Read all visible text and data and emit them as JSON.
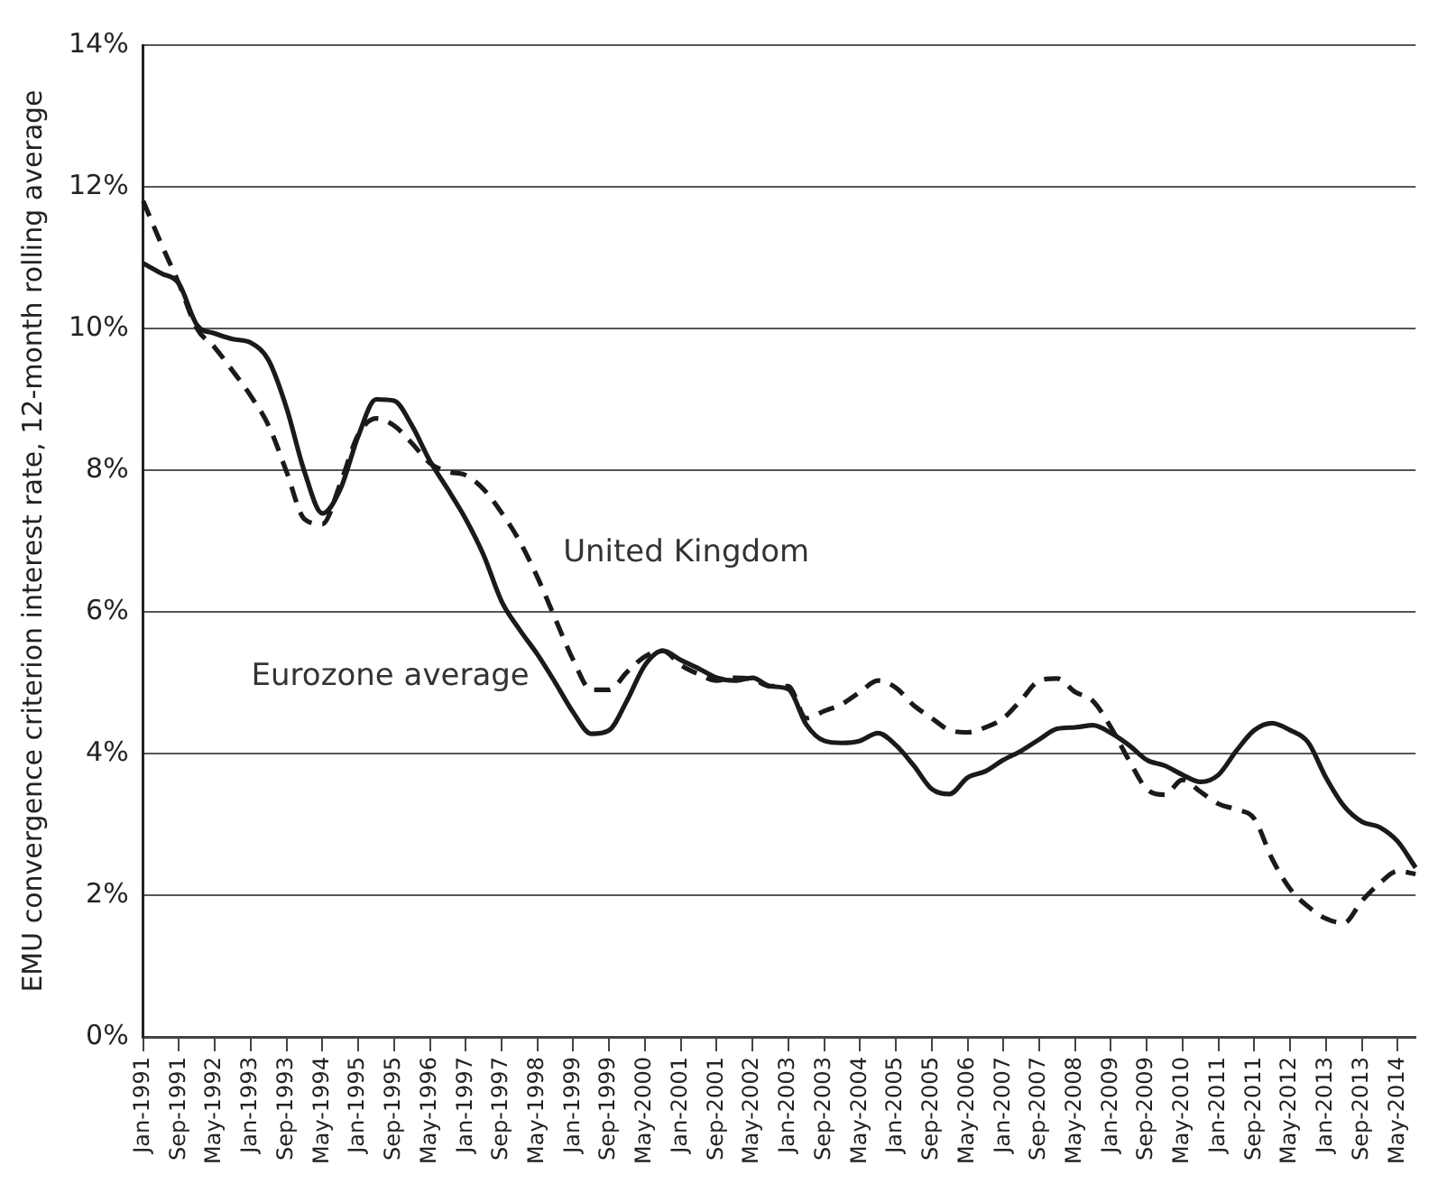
{
  "chart_data": {
    "type": "line",
    "ylabel": "EMU convergence criterion interest rate, 12-month rolling average",
    "categories": [
      "Jan-1991",
      null,
      "Sep-1991",
      null,
      "May-1992",
      null,
      "Jan-1993",
      null,
      "Sep-1993",
      null,
      "May-1994",
      null,
      "Jan-1995",
      null,
      "Sep-1995",
      null,
      "May-1996",
      null,
      "Jan-1997",
      null,
      "Sep-1997",
      null,
      "May-1998",
      null,
      "Jan-1999",
      null,
      "Sep-1999",
      null,
      "May-2000",
      null,
      "Jan-2001",
      null,
      "Sep-2001",
      null,
      "May-2002",
      null,
      "Jan-2003",
      null,
      "Sep-2003",
      null,
      "May-2004",
      null,
      "Jan-2005",
      null,
      "Sep-2005",
      null,
      "May-2006",
      null,
      "Jan-2007",
      null,
      "Sep-2007",
      null,
      "May-2008",
      null,
      "Jan-2009",
      null,
      "Sep-2009",
      null,
      "May-2010",
      null,
      "Jan-2011",
      null,
      "Sep-2011",
      null,
      "May-2012",
      null,
      "Jan-2013",
      null,
      "Sep-2013",
      null,
      "May-2014",
      null
    ],
    "series": [
      {
        "name": "Eurozone average",
        "color": "#1a1a1a",
        "line_style": "solid",
        "values": [
          10.92,
          10.78,
          10.63,
          10.05,
          9.93,
          9.85,
          9.8,
          9.55,
          8.88,
          7.98,
          7.39,
          7.73,
          8.48,
          9.0,
          8.98,
          8.63,
          8.13,
          7.73,
          7.31,
          6.8,
          6.15,
          5.75,
          5.4,
          5.0,
          4.58,
          4.28,
          4.33,
          4.75,
          5.25,
          5.45,
          5.32,
          5.2,
          5.07,
          5.03,
          5.07,
          4.95,
          4.91,
          4.41,
          4.18,
          4.15,
          4.18,
          4.29,
          4.12,
          3.83,
          3.5,
          3.43,
          3.66,
          3.75,
          3.91,
          4.04,
          4.2,
          4.35,
          4.37,
          4.4,
          4.29,
          4.12,
          3.91,
          3.83,
          3.7,
          3.6,
          3.7,
          4.04,
          4.33,
          4.43,
          4.33,
          4.16,
          3.66,
          3.26,
          3.04,
          2.96,
          2.76,
          2.39
        ]
      },
      {
        "name": "United Kingdom",
        "color": "#1a1a1a",
        "line_style": "dashed",
        "values": [
          11.8,
          11.2,
          10.63,
          10.0,
          9.73,
          9.4,
          9.05,
          8.63,
          7.98,
          7.31,
          7.24,
          7.81,
          8.5,
          8.73,
          8.63,
          8.38,
          8.1,
          7.98,
          7.93,
          7.73,
          7.4,
          7.0,
          6.49,
          5.9,
          5.32,
          4.9,
          4.9,
          5.15,
          5.37,
          5.45,
          5.25,
          5.12,
          5.03,
          5.07,
          5.05,
          4.95,
          4.95,
          4.5,
          4.6,
          4.7,
          4.87,
          5.03,
          4.93,
          4.68,
          4.5,
          4.33,
          4.3,
          4.37,
          4.5,
          4.76,
          5.03,
          5.06,
          4.87,
          4.74,
          4.37,
          3.91,
          3.5,
          3.42,
          3.63,
          3.46,
          3.29,
          3.21,
          3.08,
          2.51,
          2.09,
          1.84,
          1.67,
          1.61,
          1.92,
          2.17,
          2.34,
          2.3
        ]
      }
    ],
    "ylim": [
      0,
      14
    ],
    "yticks": [
      {
        "value": 0,
        "label": "0%"
      },
      {
        "value": 2,
        "label": "2%"
      },
      {
        "value": 4,
        "label": "4%"
      },
      {
        "value": 6,
        "label": "6%"
      },
      {
        "value": 8,
        "label": "8%"
      },
      {
        "value": 10,
        "label": "10%"
      },
      {
        "value": 12,
        "label": "12%"
      },
      {
        "value": 14,
        "label": "14%"
      }
    ],
    "grid": "y",
    "legend": false,
    "marker": "none"
  }
}
